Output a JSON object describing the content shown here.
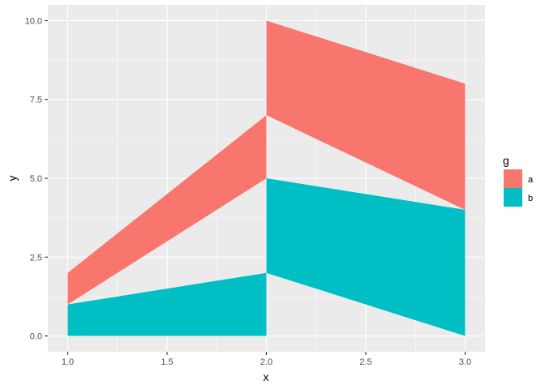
{
  "chart_data": {
    "type": "area",
    "xlabel": "x",
    "ylabel": "y",
    "xlim": [
      0.9,
      3.1
    ],
    "ylim": [
      -0.5,
      10.5
    ],
    "x_ticks": [
      1.0,
      1.5,
      2.0,
      2.5,
      3.0
    ],
    "x_tick_labels": [
      "1.0",
      "1.5",
      "2.0",
      "2.5",
      "3.0"
    ],
    "y_ticks": [
      0.0,
      2.5,
      5.0,
      7.5,
      10.0
    ],
    "y_tick_labels": [
      "0.0",
      "2.5",
      "5.0",
      "7.5",
      "10.0"
    ],
    "grid": true,
    "legend": {
      "title": "g",
      "position": "right",
      "entries": [
        {
          "label": "a",
          "color": "#F8766D"
        },
        {
          "label": "b",
          "color": "#00BFC4"
        }
      ]
    },
    "series": [
      {
        "group": "a",
        "color": "#F8766D",
        "polygons": [
          [
            [
              1,
              1
            ],
            [
              1,
              2
            ],
            [
              2,
              7
            ],
            [
              2,
              5
            ]
          ],
          [
            [
              2,
              7
            ],
            [
              2,
              10
            ],
            [
              3,
              8
            ],
            [
              3,
              4
            ]
          ]
        ]
      },
      {
        "group": "b",
        "color": "#00BFC4",
        "polygons": [
          [
            [
              1,
              0
            ],
            [
              1,
              1
            ],
            [
              2,
              2
            ],
            [
              2,
              0
            ]
          ],
          [
            [
              2,
              2
            ],
            [
              2,
              5
            ],
            [
              3,
              4
            ],
            [
              3,
              0
            ]
          ]
        ]
      }
    ]
  }
}
